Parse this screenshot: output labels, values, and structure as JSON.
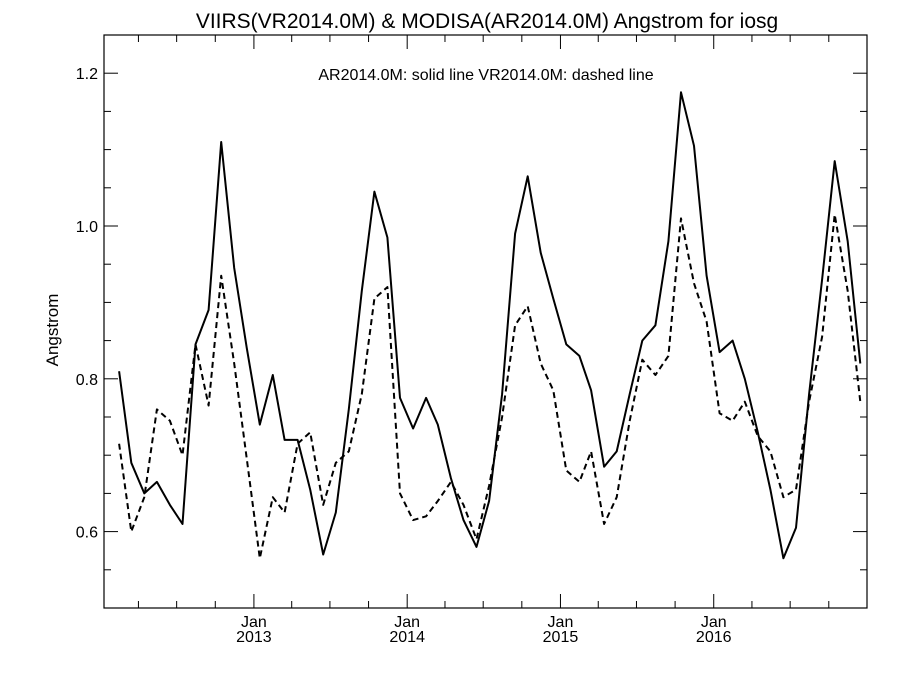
{
  "chart_data": {
    "type": "line",
    "title": "VIIRS(VR2014.0M) & MODISA(AR2014.0M)  Angstrom for iosg",
    "annotation": "AR2014.0M: solid line   VR2014.0M: dashed line",
    "xlabel": "",
    "ylabel": "Angstrom",
    "ylim": [
      0.5,
      1.25
    ],
    "y_ticks": [
      "0.6",
      "0.8",
      "1.0",
      "1.2"
    ],
    "x_ticks": [
      {
        "month": "Jan",
        "year": "2013",
        "date": "2013-01"
      },
      {
        "month": "Jan",
        "year": "2014",
        "date": "2014-01"
      },
      {
        "month": "Jan",
        "year": "2015",
        "date": "2015-01"
      },
      {
        "month": "Jan",
        "year": "2016",
        "date": "2016-01"
      }
    ],
    "x": [
      "2012-02",
      "2012-03",
      "2012-04",
      "2012-05",
      "2012-06",
      "2012-07",
      "2012-08",
      "2012-09",
      "2012-10",
      "2012-11",
      "2012-12",
      "2013-01",
      "2013-02",
      "2013-03",
      "2013-04",
      "2013-05",
      "2013-06",
      "2013-07",
      "2013-08",
      "2013-09",
      "2013-10",
      "2013-11",
      "2013-12",
      "2014-01",
      "2014-02",
      "2014-03",
      "2014-04",
      "2014-05",
      "2014-06",
      "2014-07",
      "2014-08",
      "2014-09",
      "2014-10",
      "2014-11",
      "2014-12",
      "2015-01",
      "2015-02",
      "2015-03",
      "2015-04",
      "2015-05",
      "2015-06",
      "2015-07",
      "2015-08",
      "2015-09",
      "2015-10",
      "2015-11",
      "2015-12",
      "2016-01",
      "2016-02",
      "2016-03",
      "2016-04",
      "2016-05",
      "2016-06",
      "2016-07",
      "2016-08",
      "2016-09",
      "2016-10",
      "2016-11",
      "2016-12"
    ],
    "series": [
      {
        "name": "AR2014.0M",
        "style": "solid",
        "color": "#000000",
        "values": [
          0.81,
          0.69,
          0.65,
          0.665,
          0.635,
          0.61,
          0.845,
          0.89,
          1.11,
          0.945,
          0.84,
          0.74,
          0.805,
          0.72,
          0.72,
          0.655,
          0.57,
          0.625,
          0.76,
          0.915,
          1.045,
          0.985,
          0.775,
          0.735,
          0.775,
          0.74,
          0.67,
          0.615,
          0.58,
          0.64,
          0.78,
          0.99,
          1.065,
          0.965,
          0.905,
          0.845,
          0.83,
          0.785,
          0.685,
          0.705,
          0.78,
          0.85,
          0.87,
          0.98,
          1.175,
          1.105,
          0.935,
          0.835,
          0.85,
          0.8,
          0.73,
          0.655,
          0.565,
          0.605,
          0.78,
          0.93,
          1.085,
          0.98,
          0.82
        ]
      },
      {
        "name": "VR2014.0M",
        "style": "dashed",
        "color": "#000000",
        "values": [
          0.715,
          0.6,
          0.645,
          0.76,
          0.745,
          0.7,
          0.845,
          0.765,
          0.935,
          0.82,
          0.695,
          0.565,
          0.645,
          0.625,
          0.715,
          0.73,
          0.635,
          0.69,
          0.705,
          0.78,
          0.905,
          0.92,
          0.65,
          0.615,
          0.62,
          0.64,
          0.665,
          0.635,
          0.59,
          0.66,
          0.75,
          0.87,
          0.895,
          0.82,
          0.785,
          0.68,
          0.665,
          0.705,
          0.61,
          0.645,
          0.745,
          0.825,
          0.805,
          0.83,
          1.01,
          0.925,
          0.875,
          0.755,
          0.745,
          0.77,
          0.725,
          0.705,
          0.645,
          0.655,
          0.77,
          0.855,
          1.015,
          0.915,
          0.77
        ]
      }
    ]
  }
}
